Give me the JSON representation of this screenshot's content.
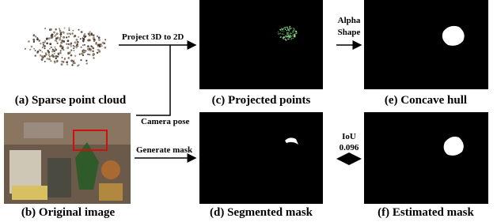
{
  "panels": [
    {
      "caption": "(a) Sparse point cloud"
    },
    {
      "caption": "(b) Original image"
    },
    {
      "caption": "(c) Projected points"
    },
    {
      "caption": "(d) Segmented mask"
    },
    {
      "caption": "(e) Concave hull"
    },
    {
      "caption": "(f) Estimated mask"
    }
  ],
  "arrows": [
    {
      "label": "Project 3D to 2D"
    },
    {
      "label": "Camera pose"
    },
    {
      "label": "Generate mask"
    },
    {
      "label": [
        "Alpha",
        "Shape"
      ]
    },
    {
      "label": [
        "IoU",
        "0.096"
      ]
    }
  ]
}
